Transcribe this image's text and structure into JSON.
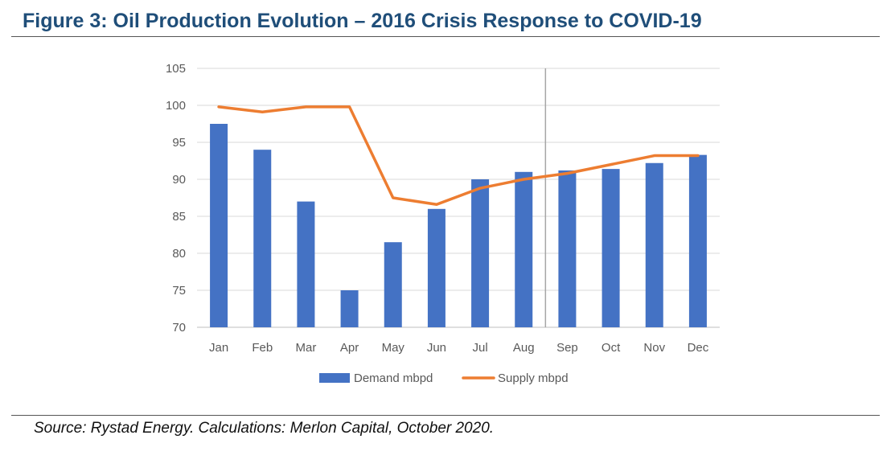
{
  "figure": {
    "title": "Figure 3: Oil Production Evolution – 2016 Crisis Response to COVID-19",
    "source": "Source: Rystad Energy. Calculations: Merlon Capital, October 2020."
  },
  "chart_data": {
    "type": "bar",
    "categories": [
      "Jan",
      "Feb",
      "Mar",
      "Apr",
      "May",
      "Jun",
      "Jul",
      "Aug",
      "Sep",
      "Oct",
      "Nov",
      "Dec"
    ],
    "series": [
      {
        "name": "Demand mbpd",
        "type": "bar",
        "color": "#4472c4",
        "values": [
          97.5,
          94.0,
          87.0,
          75.0,
          81.5,
          86.0,
          90.0,
          91.0,
          91.2,
          91.4,
          92.2,
          93.3
        ]
      },
      {
        "name": "Supply mbpd",
        "type": "line",
        "color": "#ed7d31",
        "values": [
          99.8,
          99.1,
          99.8,
          99.8,
          87.5,
          86.6,
          88.8,
          90.0,
          90.8,
          92.0,
          93.2,
          93.2
        ]
      }
    ],
    "ylim": [
      70,
      105
    ],
    "yticks": [
      70,
      75,
      80,
      85,
      90,
      95,
      100,
      105
    ],
    "xlabel": "",
    "ylabel": "",
    "grid": true,
    "legend": "bottom",
    "divider_between": [
      "Aug",
      "Sep"
    ]
  }
}
